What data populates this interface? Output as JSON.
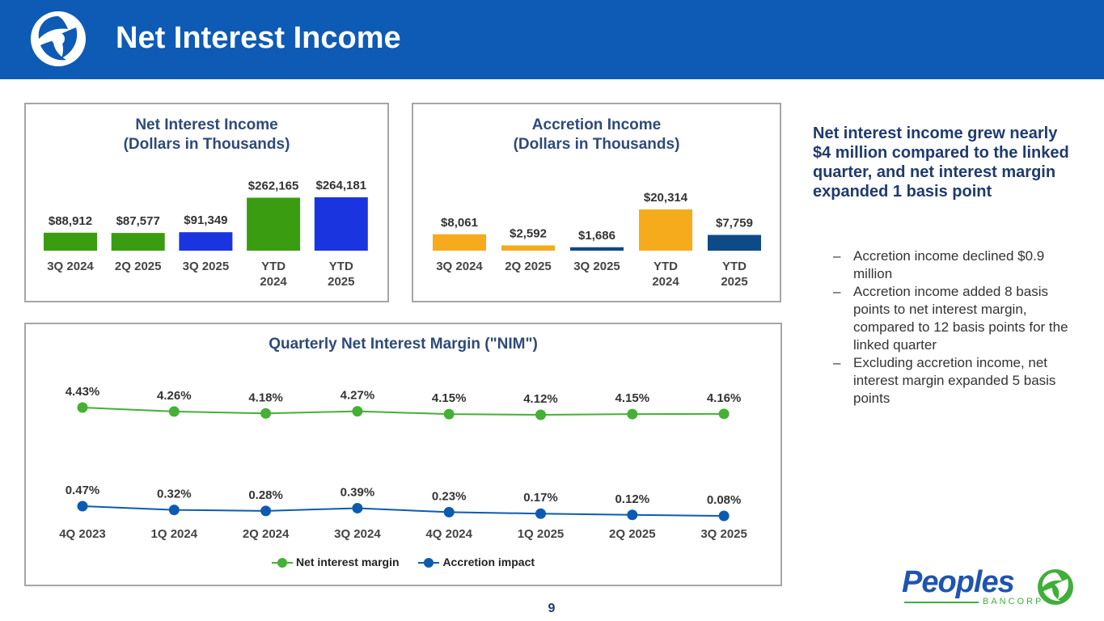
{
  "header": {
    "title": "Net Interest Income",
    "bg_color": "#0e5bb5"
  },
  "nii_panel": {
    "title_line1": "Net Interest Income",
    "title_line2": "(Dollars in Thousands)"
  },
  "accretion_panel": {
    "title_line1": "Accretion Income",
    "title_line2": "(Dollars in Thousands)"
  },
  "nim_panel": {
    "title": "Quarterly Net Interest Margin (\"NIM\")"
  },
  "summary": "Net interest income grew nearly $4 million compared to the linked quarter, and net interest margin expanded 1 basis point",
  "bullets": [
    "Accretion income declined $0.9 million",
    "Accretion income added 8 basis points to net interest margin, compared to 12 basis points for the linked quarter",
    "Excluding accretion income, net interest margin expanded 5 basis points"
  ],
  "bullet_marker": "–",
  "page_number": "9",
  "brand": {
    "name": "Peoples",
    "sub": "BANCORP",
    "icon": "peoples-bancorp-logo-icon"
  },
  "chart_data": [
    {
      "type": "bar",
      "title": "Net Interest Income (Dollars in Thousands)",
      "categories": [
        "3Q 2024",
        "2Q 2025",
        "3Q 2025",
        "YTD 2024",
        "YTD 2025"
      ],
      "values": [
        88912,
        87577,
        91349,
        262165,
        264181
      ],
      "labels": [
        "$88,912",
        "$87,577",
        "$91,349",
        "$262,165",
        "$264,181"
      ],
      "colors": [
        "#3a9c10",
        "#3a9c10",
        "#1a35e0",
        "#3a9c10",
        "#1a35e0"
      ],
      "ylim": [
        0,
        264181
      ]
    },
    {
      "type": "bar",
      "title": "Accretion Income (Dollars in Thousands)",
      "categories": [
        "3Q 2024",
        "2Q 2025",
        "3Q 2025",
        "YTD 2024",
        "YTD 2025"
      ],
      "values": [
        8061,
        2592,
        1686,
        20314,
        7759
      ],
      "labels": [
        "$8,061",
        "$2,592",
        "$1,686",
        "$20,314",
        "$7,759"
      ],
      "colors": [
        "#f5ab1b",
        "#f5ab1b",
        "#0d4a86",
        "#f5ab1b",
        "#0d4a86"
      ],
      "ylim": [
        0,
        20314
      ]
    },
    {
      "type": "line",
      "title": "Quarterly Net Interest Margin (\"NIM\")",
      "categories": [
        "4Q 2023",
        "1Q 2024",
        "2Q 2024",
        "3Q 2024",
        "4Q 2024",
        "1Q 2025",
        "2Q 2025",
        "3Q 2025"
      ],
      "series": [
        {
          "name": "Net interest margin",
          "color": "#44b035",
          "values": [
            4.43,
            4.26,
            4.18,
            4.27,
            4.15,
            4.12,
            4.15,
            4.16
          ],
          "labels": [
            "4.43%",
            "4.26%",
            "4.18%",
            "4.27%",
            "4.15%",
            "4.12%",
            "4.15%",
            "4.16%"
          ]
        },
        {
          "name": "Accretion impact",
          "color": "#0d5bb0",
          "values": [
            0.47,
            0.32,
            0.28,
            0.39,
            0.23,
            0.17,
            0.12,
            0.08
          ],
          "labels": [
            "0.47%",
            "0.32%",
            "0.28%",
            "0.39%",
            "0.23%",
            "0.17%",
            "0.12%",
            "0.08%"
          ]
        }
      ],
      "legend": "bottom"
    }
  ]
}
